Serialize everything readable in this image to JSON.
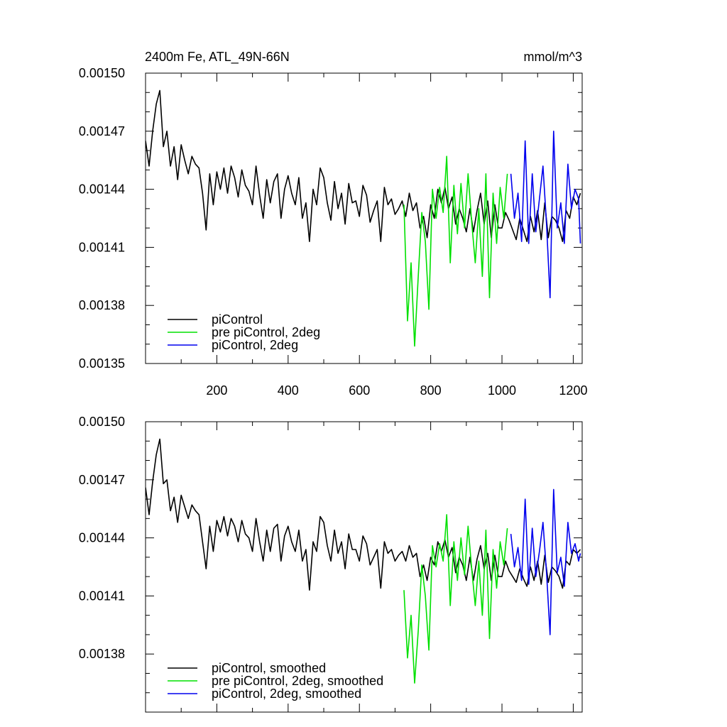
{
  "chart_data": [
    {
      "type": "line",
      "title": "2400m Fe, ATL_49N-66N",
      "units_label": "mmol/m^3",
      "ylim": [
        0.00135,
        0.0015
      ],
      "xlim": [
        0,
        1225
      ],
      "y_ticks": [
        "0.00150",
        "0.00147",
        "0.00144",
        "0.00141",
        "0.00138",
        "0.00135"
      ],
      "x_ticks": [
        "200",
        "400",
        "600",
        "800",
        "1000",
        "1200"
      ],
      "legend_position": "bottom-left",
      "series": [
        {
          "name": "piControl",
          "color": "#000000",
          "x": [
            0,
            10,
            20,
            30,
            40,
            50,
            60,
            70,
            80,
            90,
            100,
            110,
            120,
            130,
            140,
            150,
            160,
            170,
            180,
            190,
            200,
            210,
            220,
            230,
            240,
            250,
            260,
            270,
            280,
            290,
            300,
            310,
            320,
            330,
            340,
            350,
            360,
            370,
            380,
            390,
            400,
            410,
            420,
            430,
            440,
            450,
            460,
            470,
            480,
            490,
            500,
            510,
            520,
            530,
            540,
            550,
            560,
            570,
            580,
            590,
            600,
            610,
            620,
            630,
            640,
            650,
            660,
            670,
            680,
            690,
            700,
            710,
            720,
            730,
            740,
            750,
            760,
            770,
            780,
            790,
            800,
            810,
            820,
            830,
            840,
            850,
            860,
            870,
            880,
            890,
            900,
            910,
            920,
            930,
            940,
            950,
            960,
            970,
            980,
            990,
            1000,
            1010,
            1020,
            1030,
            1040,
            1050,
            1060,
            1070,
            1080,
            1090,
            1100,
            1110,
            1120,
            1130,
            1140,
            1150,
            1160,
            1170,
            1180,
            1190,
            1200,
            1210,
            1220
          ],
          "y": [
            0.001465,
            0.001452,
            0.00147,
            0.001484,
            0.001491,
            0.001462,
            0.00147,
            0.001452,
            0.001462,
            0.001445,
            0.001463,
            0.001455,
            0.001448,
            0.001457,
            0.001453,
            0.001451,
            0.001438,
            0.001419,
            0.001448,
            0.001432,
            0.001449,
            0.00144,
            0.001451,
            0.001438,
            0.001452,
            0.001446,
            0.001436,
            0.00145,
            0.001442,
            0.001439,
            0.001432,
            0.001452,
            0.001437,
            0.001425,
            0.001445,
            0.001433,
            0.001444,
            0.001448,
            0.001425,
            0.00144,
            0.001447,
            0.001438,
            0.001432,
            0.001446,
            0.001425,
            0.001433,
            0.001413,
            0.00144,
            0.001432,
            0.001451,
            0.001446,
            0.001433,
            0.001424,
            0.001444,
            0.00143,
            0.001438,
            0.001422,
            0.001443,
            0.001433,
            0.001434,
            0.001426,
            0.001442,
            0.001437,
            0.001423,
            0.001429,
            0.001434,
            0.001413,
            0.001441,
            0.001432,
            0.001435,
            0.001427,
            0.00143,
            0.001434,
            0.001426,
            0.001438,
            0.001429,
            0.001433,
            0.00142,
            0.001426,
            0.001415,
            0.001432,
            0.001425,
            0.00144,
            0.001433,
            0.001441,
            0.00143,
            0.001436,
            0.001422,
            0.00143,
            0.001425,
            0.001418,
            0.00143,
            0.001418,
            0.001429,
            0.001438,
            0.001422,
            0.001434,
            0.001415,
            0.001432,
            0.00142,
            0.00142,
            0.001428,
            0.001424,
            0.001419,
            0.001414,
            0.001425,
            0.001419,
            0.001413,
            0.001426,
            0.001418,
            0.001429,
            0.001414,
            0.001433,
            0.001415,
            0.001426,
            0.001424,
            0.00142,
            0.001413,
            0.001429,
            0.001425,
            0.001436,
            0.001432,
            0.001438
          ]
        },
        {
          "name": "pre piControl, 2deg",
          "color": "#00e000",
          "x": [
            725,
            735,
            745,
            755,
            765,
            775,
            785,
            795,
            805,
            815,
            825,
            835,
            845,
            855,
            865,
            875,
            885,
            895,
            905,
            915,
            925,
            935,
            945,
            955,
            965,
            975,
            985,
            995,
            1005,
            1015
          ],
          "y": [
            0.001432,
            0.001372,
            0.001402,
            0.001359,
            0.001395,
            0.001428,
            0.001413,
            0.001378,
            0.00144,
            0.001425,
            0.001441,
            0.001428,
            0.001457,
            0.001402,
            0.001442,
            0.001417,
            0.001443,
            0.00142,
            0.001448,
            0.001423,
            0.001402,
            0.00143,
            0.001395,
            0.001448,
            0.001384,
            0.001438,
            0.001412,
            0.001441,
            0.001425,
            0.001448
          ]
        },
        {
          "name": "piControl, 2deg",
          "color": "#0000ee",
          "x": [
            1025,
            1035,
            1045,
            1055,
            1065,
            1075,
            1085,
            1095,
            1105,
            1115,
            1125,
            1135,
            1145,
            1155,
            1165,
            1175,
            1185,
            1195,
            1205,
            1215,
            1220
          ],
          "y": [
            0.001448,
            0.001425,
            0.001438,
            0.001413,
            0.001465,
            0.001412,
            0.001448,
            0.001418,
            0.001435,
            0.001452,
            0.001422,
            0.001384,
            0.00147,
            0.00142,
            0.001433,
            0.001412,
            0.001453,
            0.00143,
            0.00144,
            0.001435,
            0.001412
          ]
        }
      ]
    },
    {
      "type": "line",
      "ylim": [
        0.00135,
        0.0015
      ],
      "xlim": [
        0,
        1225
      ],
      "y_ticks": [
        "0.00150",
        "0.00147",
        "0.00144",
        "0.00141",
        "0.00138"
      ],
      "legend_position": "bottom-left",
      "series": [
        {
          "name": "piControl, smoothed",
          "color": "#000000",
          "x": [
            0,
            10,
            20,
            30,
            40,
            50,
            60,
            70,
            80,
            90,
            100,
            110,
            120,
            130,
            140,
            150,
            160,
            170,
            180,
            190,
            200,
            210,
            220,
            230,
            240,
            250,
            260,
            270,
            280,
            290,
            300,
            310,
            320,
            330,
            340,
            350,
            360,
            370,
            380,
            390,
            400,
            410,
            420,
            430,
            440,
            450,
            460,
            470,
            480,
            490,
            500,
            510,
            520,
            530,
            540,
            550,
            560,
            570,
            580,
            590,
            600,
            610,
            620,
            630,
            640,
            650,
            660,
            670,
            680,
            690,
            700,
            710,
            720,
            730,
            740,
            750,
            760,
            770,
            780,
            790,
            800,
            810,
            820,
            830,
            840,
            850,
            860,
            870,
            880,
            890,
            900,
            910,
            920,
            930,
            940,
            950,
            960,
            970,
            980,
            990,
            1000,
            1010,
            1020,
            1030,
            1040,
            1050,
            1060,
            1070,
            1080,
            1090,
            1100,
            1110,
            1120,
            1130,
            1140,
            1150,
            1160,
            1170,
            1180,
            1190,
            1200,
            1210,
            1220
          ],
          "y": [
            0.001466,
            0.001452,
            0.001469,
            0.001483,
            0.001491,
            0.001468,
            0.00147,
            0.001454,
            0.001461,
            0.001448,
            0.001462,
            0.001456,
            0.00145,
            0.001457,
            0.001454,
            0.001452,
            0.001438,
            0.001424,
            0.001446,
            0.001433,
            0.001449,
            0.001443,
            0.001451,
            0.001441,
            0.00145,
            0.001446,
            0.001438,
            0.001449,
            0.001442,
            0.00144,
            0.001433,
            0.00145,
            0.001438,
            0.001428,
            0.001444,
            0.001433,
            0.001445,
            0.001447,
            0.001428,
            0.001441,
            0.001446,
            0.001438,
            0.001433,
            0.001444,
            0.001428,
            0.001434,
            0.001413,
            0.001438,
            0.001433,
            0.001451,
            0.001448,
            0.001436,
            0.001428,
            0.001444,
            0.001432,
            0.001438,
            0.001424,
            0.001442,
            0.001434,
            0.001434,
            0.001428,
            0.001441,
            0.001437,
            0.001426,
            0.00143,
            0.001434,
            0.001414,
            0.001438,
            0.001432,
            0.001434,
            0.001428,
            0.001431,
            0.001433,
            0.001428,
            0.001436,
            0.00143,
            0.001432,
            0.00142,
            0.001426,
            0.001418,
            0.00143,
            0.001426,
            0.001438,
            0.001433,
            0.001439,
            0.00143,
            0.001435,
            0.001422,
            0.00143,
            0.001426,
            0.001418,
            0.00143,
            0.001418,
            0.001429,
            0.001436,
            0.001424,
            0.001432,
            0.001418,
            0.001431,
            0.00142,
            0.00142,
            0.001428,
            0.001423,
            0.00142,
            0.001417,
            0.001424,
            0.001419,
            0.001415,
            0.001425,
            0.001418,
            0.001428,
            0.001416,
            0.001431,
            0.001417,
            0.001425,
            0.001423,
            0.00142,
            0.001414,
            0.001428,
            0.001426,
            0.001434,
            0.001432,
            0.001434
          ]
        },
        {
          "name": "pre piControl, 2deg, smoothed",
          "color": "#00e000",
          "x": [
            725,
            735,
            745,
            755,
            765,
            775,
            785,
            795,
            805,
            815,
            825,
            835,
            845,
            855,
            865,
            875,
            885,
            895,
            905,
            915,
            925,
            935,
            945,
            955,
            965,
            975,
            985,
            995,
            1005,
            1015
          ],
          "y": [
            0.001413,
            0.001378,
            0.0014,
            0.001365,
            0.001392,
            0.001426,
            0.00141,
            0.001382,
            0.001436,
            0.001425,
            0.001437,
            0.001428,
            0.001452,
            0.001405,
            0.001438,
            0.001418,
            0.00144,
            0.001421,
            0.001446,
            0.001424,
            0.001405,
            0.001428,
            0.0014,
            0.001444,
            0.001388,
            0.001434,
            0.001414,
            0.001438,
            0.001426,
            0.001445
          ]
        },
        {
          "name": "piControl, 2deg, smoothed",
          "color": "#0000ee",
          "x": [
            1025,
            1035,
            1045,
            1055,
            1065,
            1075,
            1085,
            1095,
            1105,
            1115,
            1125,
            1135,
            1145,
            1155,
            1165,
            1175,
            1185,
            1195,
            1205,
            1215,
            1220
          ],
          "y": [
            0.001442,
            0.001425,
            0.001435,
            0.001418,
            0.00146,
            0.001416,
            0.001445,
            0.00142,
            0.001433,
            0.001448,
            0.001422,
            0.00139,
            0.001465,
            0.001422,
            0.00143,
            0.001415,
            0.001448,
            0.001432,
            0.001437,
            0.001428,
            0.001432
          ]
        }
      ]
    }
  ]
}
